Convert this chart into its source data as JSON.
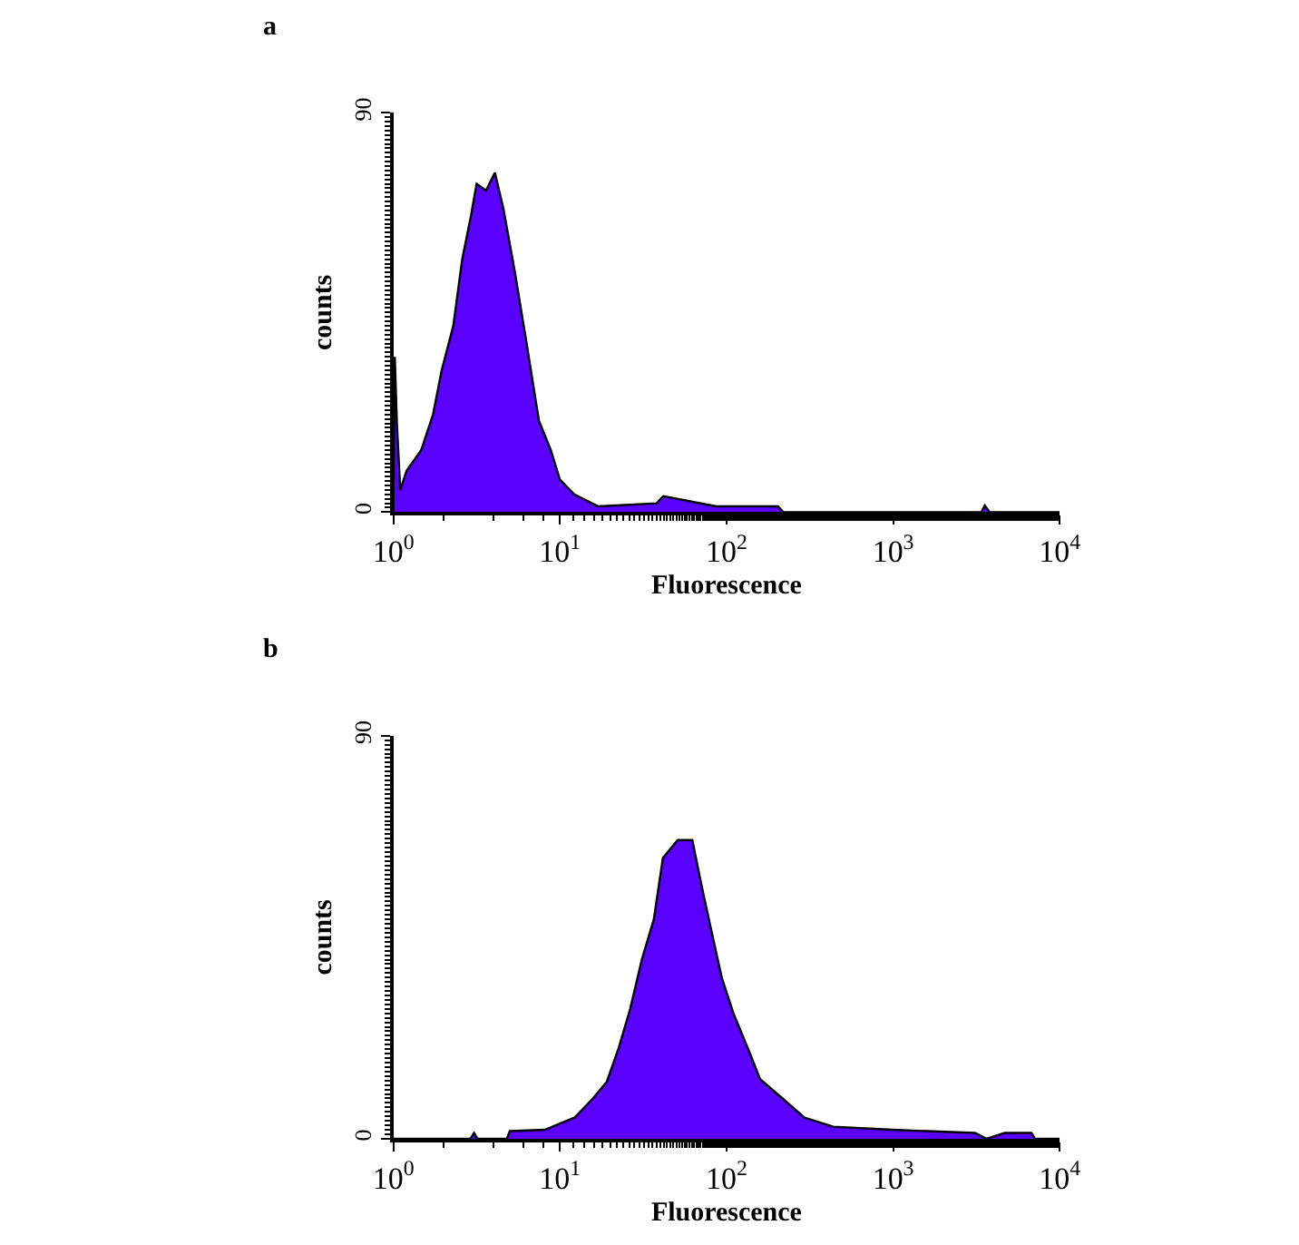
{
  "chart_data": [
    {
      "type": "area",
      "title": "a",
      "xlabel": "Fluorescence",
      "ylabel": "counts",
      "log": "x",
      "xlim": [
        1,
        10000
      ],
      "ylim": [
        0,
        90
      ],
      "xticks": [
        {
          "value": 1,
          "label": "10$^{0}$"
        },
        {
          "value": 10,
          "label": "10$^{1}$"
        },
        {
          "value": 100,
          "label": "10$^{2}$"
        },
        {
          "value": 1000,
          "label": "10$^{3}$"
        },
        {
          "value": 10000,
          "label": "10$^{4}$"
        }
      ],
      "yticks": [
        0,
        90
      ],
      "series": [
        {
          "color": "#5a00ff",
          "x": [
            1,
            1.02,
            1.05,
            1.1,
            1.2,
            1.47,
            1.73,
            1.95,
            2.29,
            2.59,
            2.93,
            3.16,
            3.6,
            4.07,
            4.57,
            5.37,
            6.31,
            7.48,
            8.81,
            10,
            12.2,
            17,
            38,
            41.7,
            87,
            204,
            219,
            3390,
            3550,
            3800,
            10000
          ],
          "values": [
            0,
            35,
            20,
            5,
            9.3,
            14,
            22,
            32,
            42,
            57,
            67,
            74,
            72.5,
            76.5,
            68.5,
            54,
            38,
            20.6,
            14,
            7.3,
            4,
            1.3,
            2,
            3.6,
            1.3,
            1.3,
            0,
            0,
            1.5,
            0,
            0
          ]
        }
      ]
    },
    {
      "type": "area",
      "title": "b",
      "xlabel": "Fluorescence",
      "ylabel": "counts",
      "log": "x",
      "xlim": [
        1,
        10000
      ],
      "ylim": [
        0,
        90
      ],
      "xticks": [
        {
          "value": 1,
          "label": "10$^{0}$"
        },
        {
          "value": 10,
          "label": "10$^{1}$"
        },
        {
          "value": 100,
          "label": "10$^{2}$"
        },
        {
          "value": 1000,
          "label": "10$^{3}$"
        },
        {
          "value": 10000,
          "label": "10$^{4}$"
        }
      ],
      "yticks": [
        0,
        90
      ],
      "series": [
        {
          "color": "#5a00ff",
          "x": [
            1,
            2.9,
            3.05,
            3.2,
            4.8,
            5.0,
            8.1,
            12.2,
            15.5,
            19.1,
            22.4,
            26.4,
            31,
            36.6,
            41.5,
            50.9,
            62.3,
            70.4,
            79.4,
            93.6,
            110,
            135,
            159,
            212,
            294,
            437,
            995,
            3100,
            3630,
            4680,
            6760,
            7100,
            10000
          ],
          "values": [
            0,
            0,
            1.3,
            0,
            0,
            1.7,
            2,
            4.7,
            8.7,
            12.7,
            20,
            29,
            40,
            49,
            62.7,
            66.7,
            66.7,
            57,
            48,
            36,
            28,
            20,
            13.3,
            9.3,
            4.7,
            2.7,
            2,
            1.3,
            0,
            1.3,
            1.3,
            0,
            0
          ]
        }
      ]
    }
  ]
}
